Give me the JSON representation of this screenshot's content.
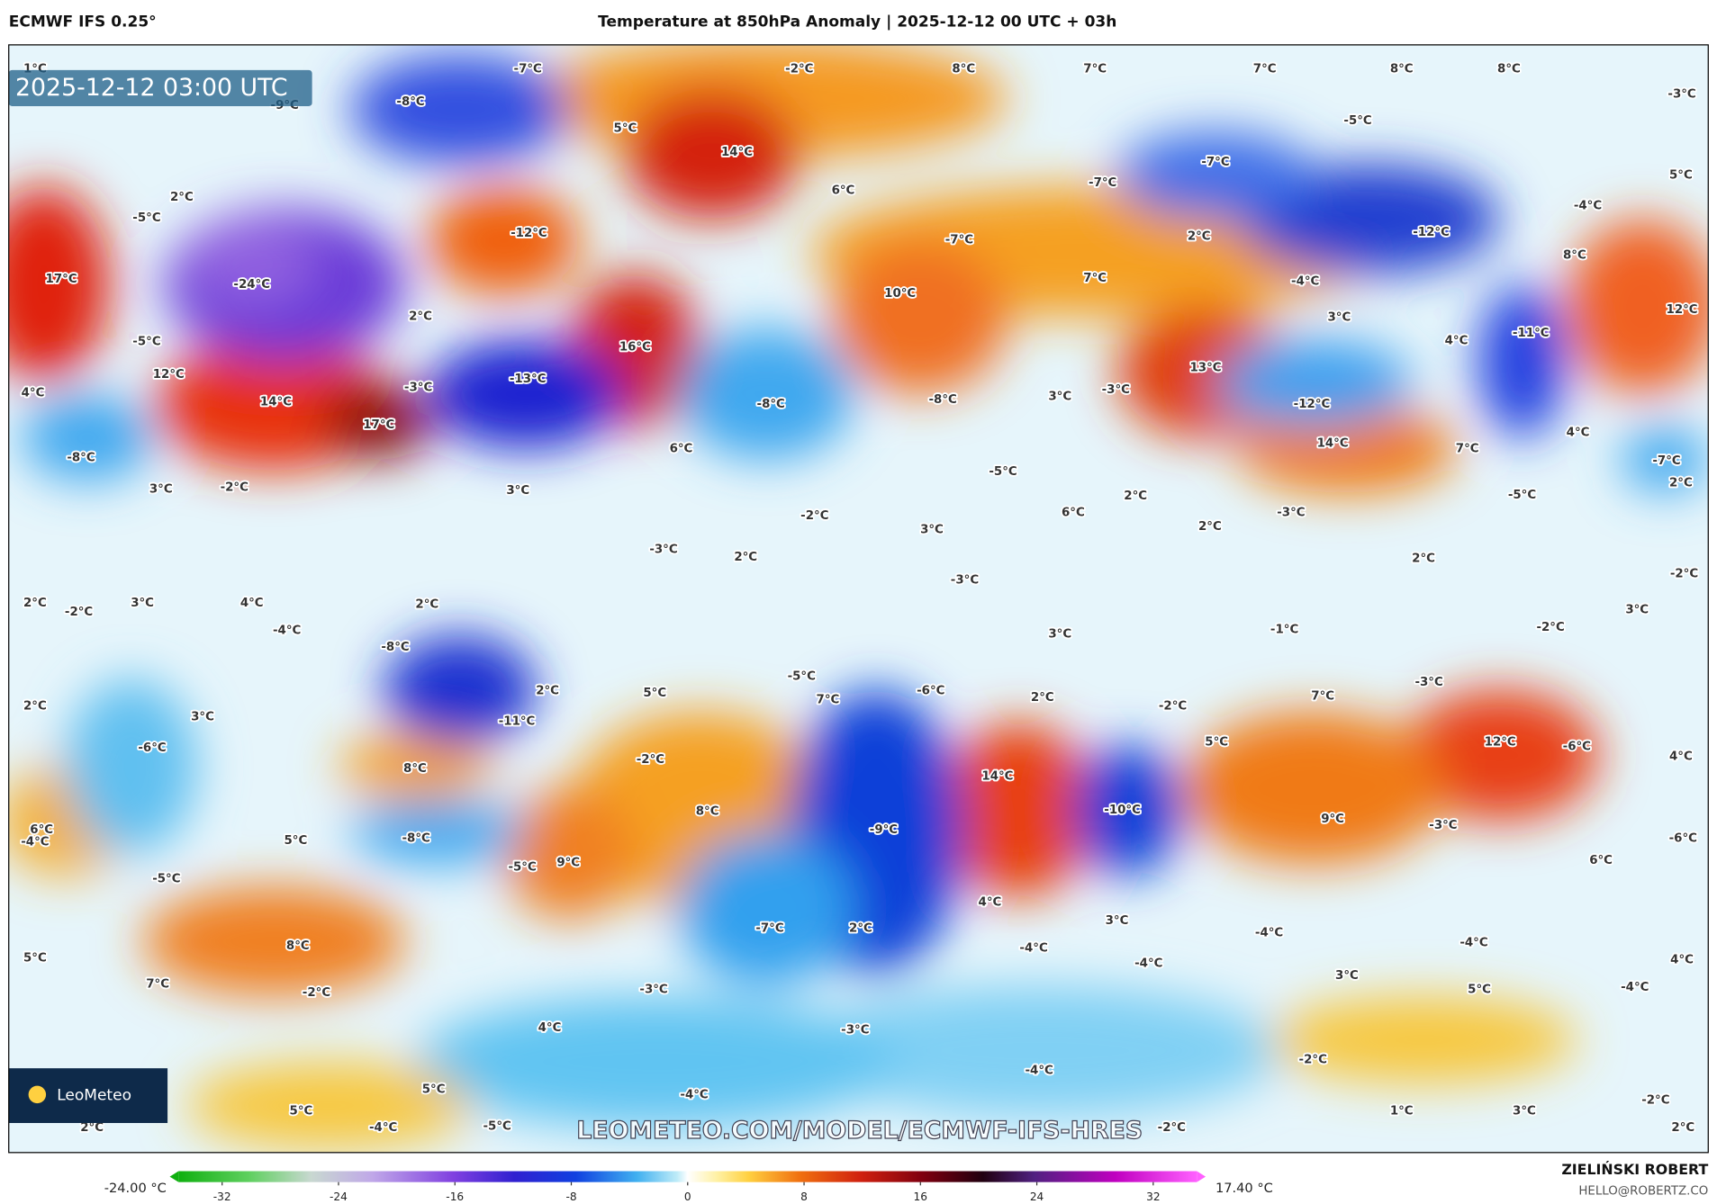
{
  "header": {
    "model": "ECMWF IFS 0.25°",
    "title": "Temperature at 850hPa Anomaly | 2025-12-12 00 UTC + 03h"
  },
  "map": {
    "timestamp": "2025-12-12 03:00 UTC",
    "watermark": "LEOMETEO.COM/MODEL/ECMWF-IFS-HRES",
    "logo": "LeoMeteo",
    "labels": [
      "-7°C",
      "-2°C",
      "8°C",
      "7°C",
      "7°C",
      "8°C",
      "8°C",
      "-3°C",
      "1°C",
      "-9°C",
      "-8°C",
      "5°C",
      "14°C",
      "-5°C",
      "-7°C",
      "-7°C",
      "5°C",
      "6°C",
      "-4°C",
      "2°C",
      "-5°C",
      "-12°C",
      "-7°C",
      "2°C",
      "-12°C",
      "8°C",
      "17°C",
      "-24°C",
      "7°C",
      "-4°C",
      "10°C",
      "2°C",
      "3°C",
      "12°C",
      "-5°C",
      "16°C",
      "4°C",
      "-11°C",
      "12°C",
      "-13°C",
      "-3°C",
      "13°C",
      "4°C",
      "14°C",
      "-8°C",
      "-8°C",
      "3°C",
      "-3°C",
      "-12°C",
      "17°C",
      "-8°C",
      "6°C",
      "14°C",
      "7°C",
      "4°C",
      "-7°C",
      "3°C",
      "-2°C",
      "3°C",
      "-5°C",
      "2°C",
      "-5°C",
      "2°C",
      "-2°C",
      "6°C",
      "-3°C",
      "3°C",
      "2°C",
      "-3°C",
      "2°C",
      "2°C",
      "-2°C",
      "-3°C",
      "2°C",
      "-2°C",
      "3°C",
      "4°C",
      "2°C",
      "3°C",
      "-4°C",
      "3°C",
      "-1°C",
      "-2°C",
      "-8°C",
      "-5°C",
      "-3°C",
      "2°C",
      "5°C",
      "7°C",
      "-6°C",
      "2°C",
      "-2°C",
      "7°C",
      "2°C",
      "3°C",
      "-11°C",
      "-6°C",
      "-2°C",
      "5°C",
      "12°C",
      "-6°C",
      "4°C",
      "8°C",
      "14°C",
      "8°C",
      "-10°C",
      "9°C",
      "-3°C",
      "6°C",
      "-4°C",
      "5°C",
      "-8°C",
      "-9°C",
      "-6°C",
      "-5°C",
      "-5°C",
      "9°C",
      "6°C",
      "4°C",
      "3°C",
      "-7°C",
      "2°C",
      "-4°C",
      "8°C",
      "-4°C",
      "-4°C",
      "5°C",
      "4°C",
      "7°C",
      "-4°C",
      "3°C",
      "-2°C",
      "-3°C",
      "5°C",
      "-4°C",
      "4°C",
      "-3°C",
      "-2°C",
      "-4°C",
      "5°C",
      "-4°C",
      "-2°C",
      "5°C",
      "-4°C",
      "-5°C",
      "-2°C",
      "1°C",
      "3°C",
      "2°C",
      "2°C"
    ]
  },
  "colorbar": {
    "lim": [
      -35,
      35
    ],
    "ticks": [
      -32,
      -24,
      -16,
      -8,
      0,
      8,
      16,
      24,
      32
    ],
    "min_label": "-24.00 °C",
    "max_label": "17.40 °C"
  },
  "footer": {
    "author": "ZIELIŃSKI ROBERT",
    "email": "HELLO@ROBERTZ.CO"
  }
}
